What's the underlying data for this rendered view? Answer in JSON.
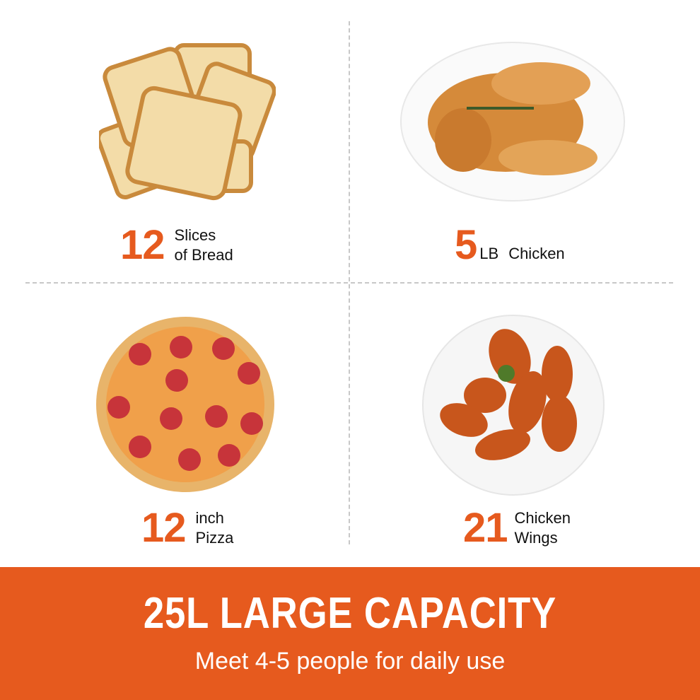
{
  "items": [
    {
      "number": "12",
      "line1": "Slices",
      "line2": "of Bread",
      "image": "bread-slices"
    },
    {
      "number": "5",
      "unit": "LB",
      "line1": "Chicken",
      "image": "roast-chicken"
    },
    {
      "number": "12",
      "line1": "inch",
      "line2": "Pizza",
      "image": "pepperoni-pizza"
    },
    {
      "number": "21",
      "line1": "Chicken",
      "line2": "Wings",
      "image": "chicken-wings"
    }
  ],
  "banner": {
    "title": "25L LARGE CAPACITY",
    "subtitle": "Meet 4-5 people for daily use"
  },
  "colors": {
    "accent": "#e65a1e",
    "text": "#111111",
    "divider": "#c8c8c8"
  }
}
